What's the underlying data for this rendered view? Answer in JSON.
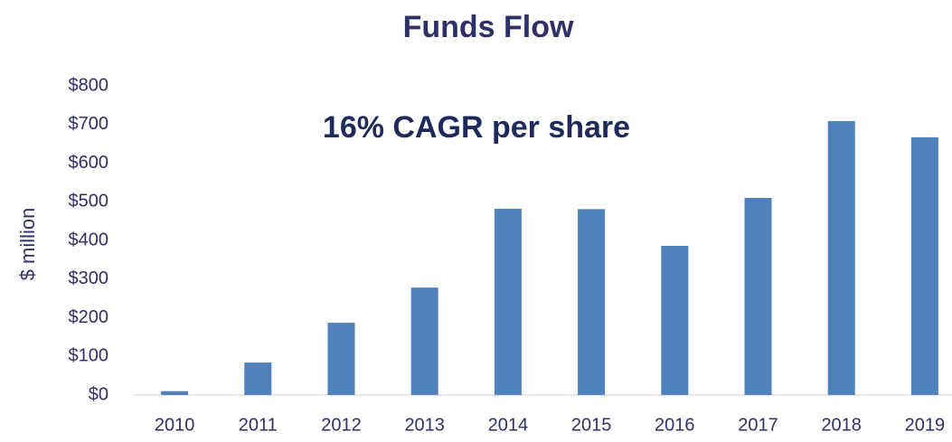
{
  "chart_data": {
    "type": "bar",
    "title": "Funds Flow",
    "annotation": "16% CAGR per share",
    "y_label": "$ million",
    "categories": [
      "2010",
      "2011",
      "2012",
      "2013",
      "2014",
      "2015",
      "2016",
      "2017",
      "2018",
      "2019"
    ],
    "values": [
      10,
      84,
      187,
      278,
      482,
      481,
      386,
      510,
      709,
      667
    ],
    "color": "#4f81bd",
    "ylim": [
      0,
      800
    ],
    "yticks": [
      {
        "value": 0,
        "label": "$0"
      },
      {
        "value": 100,
        "label": "$100"
      },
      {
        "value": 200,
        "label": "$200"
      },
      {
        "value": 300,
        "label": "$300"
      },
      {
        "value": 400,
        "label": "$400"
      },
      {
        "value": 500,
        "label": "$500"
      },
      {
        "value": 600,
        "label": "$600"
      },
      {
        "value": 700,
        "label": "$700"
      },
      {
        "value": 800,
        "label": "$800"
      }
    ],
    "grid": false
  }
}
